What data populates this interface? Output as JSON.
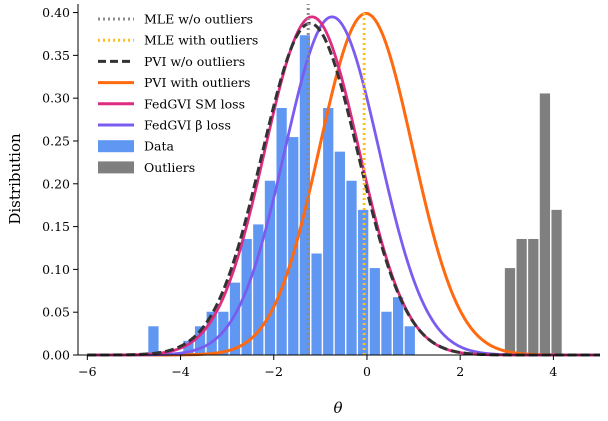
{
  "chart_data": {
    "type": "histogram+line",
    "xlabel": "θ",
    "ylabel": "Distribution",
    "xlim": [
      -6.2,
      5.0
    ],
    "ylim": [
      0,
      0.41
    ],
    "x_ticks": [
      -6,
      -4,
      -2,
      0,
      2,
      4
    ],
    "x_tick_labels": [
      "−6",
      "−4",
      "−2",
      "0",
      "2",
      "4"
    ],
    "y_ticks": [
      0.0,
      0.05,
      0.1,
      0.15,
      0.2,
      0.25,
      0.3,
      0.35,
      0.4
    ],
    "y_tick_labels": [
      "0.00",
      "0.05",
      "0.10",
      "0.15",
      "0.20",
      "0.25",
      "0.30",
      "0.35",
      "0.40"
    ],
    "legend_position": "top-left",
    "legend": [
      {
        "label": "MLE w/o outliers",
        "style": "dotted",
        "color": "#8c8c8c"
      },
      {
        "label": "MLE with outliers",
        "style": "dotted",
        "color": "#ffbf1f"
      },
      {
        "label": "PVI w/o outliers",
        "style": "dashed",
        "color": "#333333"
      },
      {
        "label": "PVI with outliers",
        "style": "solid",
        "color": "#ff6a10"
      },
      {
        "label": "FedGVI SM loss",
        "style": "solid",
        "color": "#de2c80"
      },
      {
        "label": "FedGVI β loss",
        "style": "solid",
        "color": "#7b5cf0"
      },
      {
        "label": "Data",
        "style": "patch",
        "color": "#5f97f2"
      },
      {
        "label": "Outliers",
        "style": "patch",
        "color": "#7f7f7f"
      }
    ],
    "histogram_data": {
      "bin_width": 0.25,
      "color": "#5f97f2",
      "bins": [
        {
          "x0": -4.7,
          "height": 0.034
        },
        {
          "x0": -4.45,
          "height": 0.0
        },
        {
          "x0": -4.2,
          "height": 0.0
        },
        {
          "x0": -3.95,
          "height": 0.017
        },
        {
          "x0": -3.7,
          "height": 0.034
        },
        {
          "x0": -3.45,
          "height": 0.051
        },
        {
          "x0": -3.2,
          "height": 0.051
        },
        {
          "x0": -2.95,
          "height": 0.085
        },
        {
          "x0": -2.7,
          "height": 0.136
        },
        {
          "x0": -2.45,
          "height": 0.153
        },
        {
          "x0": -2.2,
          "height": 0.204
        },
        {
          "x0": -1.95,
          "height": 0.289
        },
        {
          "x0": -1.7,
          "height": 0.255
        },
        {
          "x0": -1.45,
          "height": 0.374
        },
        {
          "x0": -1.2,
          "height": 0.119
        },
        {
          "x0": -0.95,
          "height": 0.289
        },
        {
          "x0": -0.7,
          "height": 0.238
        },
        {
          "x0": -0.45,
          "height": 0.204
        },
        {
          "x0": -0.2,
          "height": 0.17
        },
        {
          "x0": 0.05,
          "height": 0.102
        },
        {
          "x0": 0.3,
          "height": 0.051
        },
        {
          "x0": 0.55,
          "height": 0.068
        },
        {
          "x0": 0.8,
          "height": 0.034
        }
      ]
    },
    "outliers_data": {
      "bin_width": 0.25,
      "color": "#7f7f7f",
      "bins": [
        {
          "x0": 2.95,
          "height": 0.102
        },
        {
          "x0": 3.2,
          "height": 0.136
        },
        {
          "x0": 3.45,
          "height": 0.136
        },
        {
          "x0": 3.7,
          "height": 0.306
        },
        {
          "x0": 3.95,
          "height": 0.17
        }
      ]
    },
    "curves": [
      {
        "name": "PVI with outliers",
        "mean": -0.02,
        "sd": 1.0,
        "color": "#ff6a10",
        "style": "solid",
        "width": 3
      },
      {
        "name": "FedGVI β loss",
        "mean": -0.75,
        "sd": 1.01,
        "color": "#7b5cf0",
        "style": "solid",
        "width": 2.8
      },
      {
        "name": "FedGVI SM loss",
        "mean": -1.18,
        "sd": 1.01,
        "color": "#de2c80",
        "style": "solid",
        "width": 2.8
      },
      {
        "name": "PVI w/o outliers",
        "mean": -1.22,
        "sd": 1.03,
        "color": "#333333",
        "style": "dashed",
        "width": 3
      }
    ],
    "vlines": [
      {
        "name": "MLE w/o outliers",
        "x": -1.26,
        "ymax": 0.41,
        "color": "#8c8c8c",
        "style": "dotted"
      },
      {
        "name": "MLE with outliers",
        "x": -0.06,
        "ymax": 0.4,
        "color": "#ffbf1f",
        "style": "dotted"
      }
    ]
  }
}
